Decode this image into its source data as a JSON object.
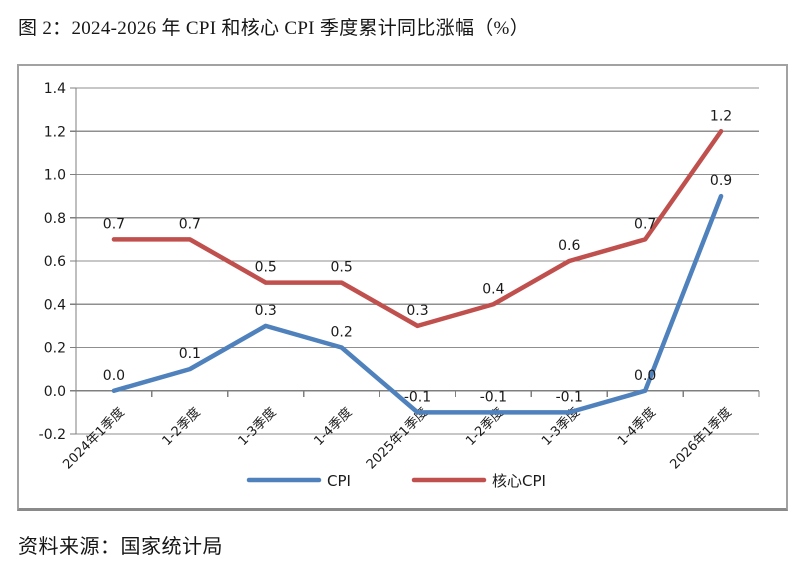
{
  "figure": {
    "title": "图 2：2024-2026 年 CPI 和核心 CPI 季度累计同比涨幅（%）",
    "source": "资料来源：国家统计局"
  },
  "chart_data": {
    "type": "line",
    "title": "2024-2026 年 CPI 和核心 CPI 季度累计同比涨幅（%）",
    "categories": [
      "2024年1季度",
      "1-2季度",
      "1-3季度",
      "1-4季度",
      "2025年1季度",
      "1-2季度",
      "1-3季度",
      "1-4季度",
      "2026年1季度"
    ],
    "series": [
      {
        "name": "CPI",
        "color": "#4F81BD",
        "values": [
          0.0,
          0.1,
          0.3,
          0.2,
          -0.1,
          -0.1,
          -0.1,
          0.0,
          0.9
        ]
      },
      {
        "name": "核心CPI",
        "color": "#C0504D",
        "values": [
          0.7,
          0.7,
          0.5,
          0.5,
          0.3,
          0.4,
          0.6,
          0.7,
          1.2
        ]
      }
    ],
    "ylim": [
      -0.2,
      1.4
    ],
    "ytick_step": 0.2,
    "yticks": [
      "-0.2",
      "0.0",
      "0.2",
      "0.4",
      "0.6",
      "0.8",
      "1.0",
      "1.2",
      "1.4"
    ],
    "grid": true,
    "data_labels": true,
    "legend_position": "bottom"
  },
  "colors": {
    "grid": "#8f8f8f",
    "axis": "#7f7f7f",
    "text": "#1a1a1a",
    "frame": "#a2a2a2",
    "cpi_line": "#4F81BD",
    "core_cpi_line": "#C0504D"
  }
}
